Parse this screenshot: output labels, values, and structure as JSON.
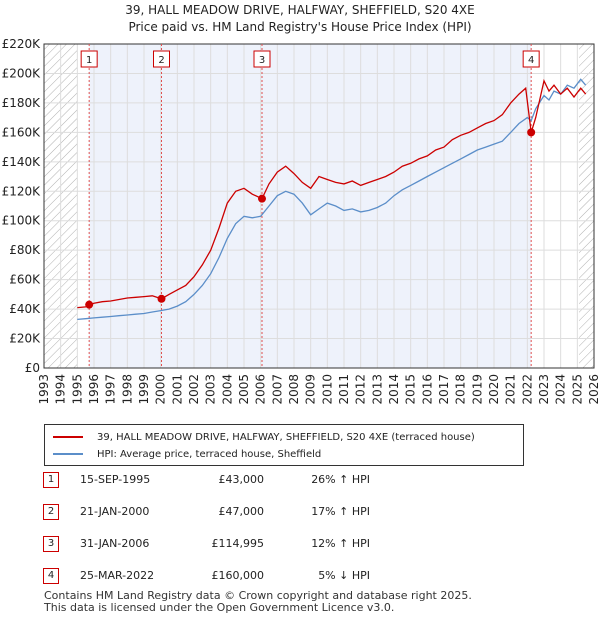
{
  "chart_data": {
    "type": "line",
    "title": "39, HALL MEADOW DRIVE, HALFWAY, SHEFFIELD, S20 4XE",
    "subtitle": "Price paid vs. HM Land Registry's House Price Index (HPI)",
    "xlabel": "",
    "ylabel": "",
    "xlim": [
      1993,
      2026
    ],
    "ylim": [
      0,
      220000
    ],
    "yticks": [
      0,
      20000,
      40000,
      60000,
      80000,
      100000,
      120000,
      140000,
      160000,
      180000,
      200000,
      220000
    ],
    "ytick_labels": [
      "£0",
      "£20K",
      "£40K",
      "£60K",
      "£80K",
      "£100K",
      "£120K",
      "£140K",
      "£160K",
      "£180K",
      "£200K",
      "£220K"
    ],
    "xticks": [
      1993,
      1994,
      1995,
      1996,
      1997,
      1998,
      1999,
      2000,
      2001,
      2002,
      2003,
      2004,
      2005,
      2006,
      2007,
      2008,
      2009,
      2010,
      2011,
      2012,
      2013,
      2014,
      2015,
      2016,
      2017,
      2018,
      2019,
      2020,
      2021,
      2022,
      2023,
      2024,
      2025,
      2026
    ],
    "xtick_labels": [
      "1993",
      "1994",
      "1995",
      "1996",
      "1997",
      "1998",
      "1999",
      "2000",
      "2001",
      "2002",
      "2003",
      "2004",
      "2005",
      "2006",
      "2007",
      "2008",
      "2009",
      "2010",
      "2011",
      "2012",
      "2013",
      "2014",
      "2015",
      "2016",
      "2017",
      "2018",
      "2019",
      "2020",
      "2021",
      "2022",
      "2023",
      "2024",
      "2025",
      "2026"
    ],
    "hatched_ranges": [
      [
        1993,
        1995.0
      ],
      [
        2025.1,
        2026
      ]
    ],
    "series": [
      {
        "name": "39, HALL MEADOW DRIVE, HALFWAY, SHEFFIELD, S20 4XE (terraced house)",
        "color": "#cc0000",
        "x": [
          1995.0,
          1995.5,
          1995.71,
          1996,
          1996.5,
          1997,
          1997.5,
          1998,
          1998.5,
          1999,
          1999.5,
          2000.05,
          2000.5,
          2001,
          2001.5,
          2002,
          2002.5,
          2003,
          2003.5,
          2004,
          2004.5,
          2005,
          2005.5,
          2006.08,
          2006.5,
          2007,
          2007.5,
          2008,
          2008.5,
          2009,
          2009.5,
          2010,
          2010.5,
          2011,
          2011.5,
          2012,
          2012.5,
          2013,
          2013.5,
          2014,
          2014.5,
          2015,
          2015.5,
          2016,
          2016.5,
          2017,
          2017.5,
          2018,
          2018.5,
          2019,
          2019.5,
          2020,
          2020.5,
          2021,
          2021.5,
          2021.9,
          2022.23,
          2022.5,
          2022.8,
          2023,
          2023.3,
          2023.6,
          2024,
          2024.4,
          2024.8,
          2025.2,
          2025.5
        ],
        "y": [
          41000,
          41500,
          43000,
          44000,
          45000,
          45500,
          46500,
          47500,
          48000,
          48500,
          49000,
          47000,
          50000,
          53000,
          56000,
          62000,
          70000,
          80000,
          95000,
          112000,
          120000,
          122000,
          118000,
          114995,
          125000,
          133000,
          137000,
          132000,
          126000,
          122000,
          130000,
          128000,
          126000,
          125000,
          127000,
          124000,
          126000,
          128000,
          130000,
          133000,
          137000,
          139000,
          142000,
          144000,
          148000,
          150000,
          155000,
          158000,
          160000,
          163000,
          166000,
          168000,
          172000,
          180000,
          186000,
          190000,
          160000,
          170000,
          185000,
          195000,
          188000,
          192000,
          186000,
          190000,
          184000,
          190000,
          186000
        ]
      },
      {
        "name": "HPI: Average price, terraced house, Sheffield",
        "color": "#5b8ec9",
        "x": [
          1995.0,
          1995.5,
          1996,
          1996.5,
          1997,
          1997.5,
          1998,
          1998.5,
          1999,
          1999.5,
          2000,
          2000.5,
          2001,
          2001.5,
          2002,
          2002.5,
          2003,
          2003.5,
          2004,
          2004.5,
          2005,
          2005.5,
          2006,
          2006.5,
          2007,
          2007.5,
          2008,
          2008.5,
          2009,
          2009.5,
          2010,
          2010.5,
          2011,
          2011.5,
          2012,
          2012.5,
          2013,
          2013.5,
          2014,
          2014.5,
          2015,
          2015.5,
          2016,
          2016.5,
          2017,
          2017.5,
          2018,
          2018.5,
          2019,
          2019.5,
          2020,
          2020.5,
          2021,
          2021.5,
          2022,
          2022.23,
          2022.5,
          2023,
          2023.3,
          2023.6,
          2024,
          2024.4,
          2024.8,
          2025.2,
          2025.5
        ],
        "y": [
          33000,
          33500,
          34000,
          34500,
          35000,
          35500,
          36000,
          36500,
          37000,
          38000,
          39000,
          40000,
          42000,
          45000,
          50000,
          56000,
          64000,
          75000,
          88000,
          98000,
          103000,
          102000,
          103000,
          110000,
          117000,
          120000,
          118000,
          112000,
          104000,
          108000,
          112000,
          110000,
          107000,
          108000,
          106000,
          107000,
          109000,
          112000,
          117000,
          121000,
          124000,
          127000,
          130000,
          133000,
          136000,
          139000,
          142000,
          145000,
          148000,
          150000,
          152000,
          154000,
          160000,
          166000,
          170000,
          168000,
          176000,
          185000,
          182000,
          188000,
          186000,
          192000,
          190000,
          196000,
          192000
        ]
      }
    ],
    "sales": [
      {
        "label": "1",
        "x": 1995.71,
        "y": 43000
      },
      {
        "label": "2",
        "x": 2000.05,
        "y": 47000
      },
      {
        "label": "3",
        "x": 2006.08,
        "y": 114995
      },
      {
        "label": "4",
        "x": 2022.23,
        "y": 160000
      }
    ]
  },
  "legend": {
    "property_label": "39, HALL MEADOW DRIVE, HALFWAY, SHEFFIELD, S20 4XE (terraced house)",
    "hpi_label": "HPI: Average price, terraced house, Sheffield"
  },
  "sales_table": [
    {
      "num": "1",
      "date": "15-SEP-1995",
      "price": "£43,000",
      "hpi": "26% ↑ HPI"
    },
    {
      "num": "2",
      "date": "21-JAN-2000",
      "price": "£47,000",
      "hpi": "17% ↑ HPI"
    },
    {
      "num": "3",
      "date": "31-JAN-2006",
      "price": "£114,995",
      "hpi": "12% ↑ HPI"
    },
    {
      "num": "4",
      "date": "25-MAR-2022",
      "price": "£160,000",
      "hpi": "5% ↓ HPI"
    }
  ],
  "footer": {
    "line1": "Contains HM Land Registry data © Crown copyright and database right 2025.",
    "line2": "This data is licensed under the Open Government Licence v3.0."
  },
  "colors": {
    "property": "#cc0000",
    "hpi": "#5b8ec9",
    "shade": "#eef2fb",
    "marker_line": "#e05050"
  }
}
